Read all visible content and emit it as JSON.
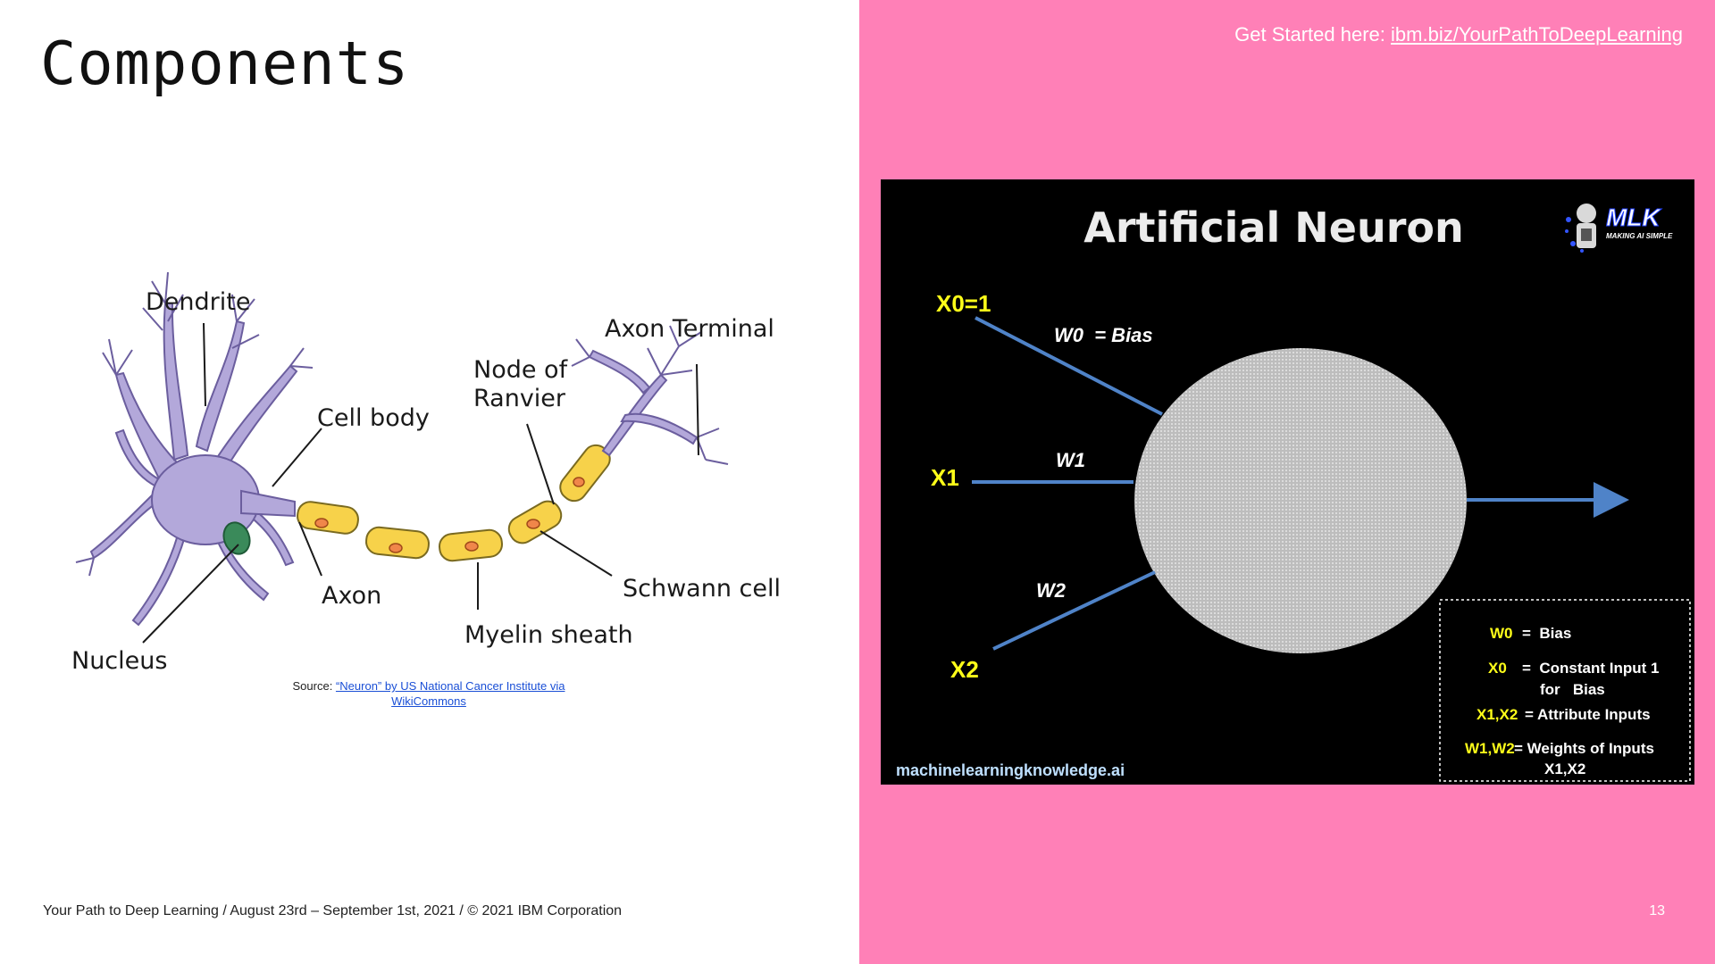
{
  "slide": {
    "title": "Components",
    "get_started_prefix": "Get Started here:",
    "get_started_link": "ibm.biz/YourPathToDeepLearning",
    "footer": "Your Path to Deep Learning / August 23rd – September 1st, 2021 / © 2021 IBM Corporation",
    "page_number": "13"
  },
  "biological_neuron": {
    "labels": {
      "dendrite": "Dendrite",
      "cell_body": "Cell body",
      "nucleus": "Nucleus",
      "axon": "Axon",
      "node_of_ranvier_line1": "Node of",
      "node_of_ranvier_line2": "Ranvier",
      "axon_terminal": "Axon Terminal",
      "schwann_cell": "Schwann cell",
      "myelin_sheath": "Myelin sheath"
    },
    "colors": {
      "body": "#b3a8da",
      "myelin": "#f7d24a",
      "nucleus": "#3a8a5a"
    },
    "source": {
      "prefix": "Source:",
      "link_line1": "“Neuron” by US National Cancer Institute via",
      "link_line2": "WikiCommons"
    }
  },
  "artificial_neuron": {
    "title": "Artificial Neuron",
    "inputs": {
      "x0": "X0=1",
      "x1": "X1",
      "x2": "X2"
    },
    "weights": {
      "w0": "W0  = Bias",
      "w1": "W1",
      "w2": "W2"
    },
    "legend": [
      {
        "key": "W0",
        "value": "=  Bias"
      },
      {
        "key": "X0",
        "value": "=  Constant Input 1"
      },
      {
        "key": "",
        "value": "for   Bias"
      },
      {
        "key": "X1,X2",
        "value": "= Attribute Inputs"
      },
      {
        "key": "W1,W2",
        "value": "= Weights of Inputs"
      },
      {
        "key": "",
        "value": "X1,X2"
      }
    ],
    "credit": "machinelearningknowledge.ai",
    "logo": {
      "text": "MLK",
      "tagline": "MAKING AI SIMPLE"
    },
    "colors": {
      "arrow": "#4f83c8",
      "input_label": "#ffff19",
      "background": "#000000"
    }
  }
}
